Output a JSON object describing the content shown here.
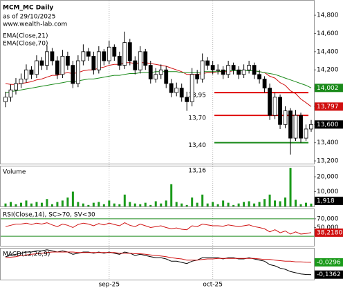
{
  "chart_data": [
    {
      "type": "candlestick",
      "title": "MCM_MC Daily",
      "subtitle": "as of 29/10/2025",
      "source": "www.wealth-lab.com",
      "categories": [
        null,
        null,
        null,
        null,
        null,
        null,
        null,
        null,
        null,
        null,
        null,
        null,
        null,
        null,
        null,
        null,
        null,
        null,
        null,
        null,
        "sep-25",
        null,
        null,
        null,
        null,
        null,
        null,
        null,
        null,
        null,
        null,
        null,
        null,
        null,
        null,
        null,
        null,
        null,
        null,
        null,
        "oct-25",
        null,
        null,
        null,
        null,
        null,
        null,
        null,
        null,
        null,
        null,
        null,
        null,
        null,
        null,
        null,
        null,
        null,
        null,
        null
      ],
      "open": [
        13850,
        13900,
        13980,
        14050,
        14100,
        14200,
        14150,
        14300,
        14250,
        14400,
        14300,
        14150,
        14350,
        14250,
        14050,
        14300,
        14400,
        14350,
        14200,
        14400,
        14300,
        14450,
        14350,
        14250,
        14500,
        14300,
        14200,
        14400,
        14250,
        14100,
        14150,
        14200,
        14050,
        13950,
        14000,
        13900,
        13850,
        14150,
        14100,
        14300,
        14250,
        14200,
        14200,
        14150,
        14250,
        14200,
        14150,
        14200,
        14250,
        14150,
        14100,
        14000,
        13700,
        13900,
        13600,
        13750,
        13450,
        13700,
        13450,
        13550
      ],
      "high": [
        13960,
        14040,
        14110,
        14160,
        14260,
        14240,
        14360,
        14340,
        14470,
        14440,
        14350,
        14420,
        14400,
        14300,
        14360,
        14480,
        14440,
        14400,
        14460,
        14430,
        14520,
        14480,
        14400,
        14620,
        14540,
        14350,
        14460,
        14430,
        14300,
        14220,
        14260,
        14240,
        14100,
        14060,
        14050,
        13960,
        14220,
        14200,
        14380,
        14340,
        14300,
        14260,
        14240,
        14300,
        14280,
        14240,
        14260,
        14300,
        14280,
        14200,
        14130,
        14050,
        13950,
        13930,
        13800,
        13780,
        13760,
        13730,
        13600,
        13650
      ],
      "low": [
        13790,
        13850,
        13930,
        14000,
        14060,
        14100,
        14110,
        14200,
        14200,
        14250,
        14100,
        14110,
        14200,
        14000,
        14010,
        14250,
        14300,
        14150,
        14160,
        14250,
        14260,
        14300,
        14200,
        14210,
        14250,
        14150,
        14160,
        14200,
        14050,
        14060,
        14100,
        14000,
        13900,
        13910,
        13850,
        13750,
        13800,
        14050,
        14060,
        14200,
        14150,
        14150,
        14100,
        14110,
        14150,
        14100,
        14110,
        14160,
        14100,
        14050,
        13950,
        13650,
        13660,
        13550,
        13560,
        13270,
        13420,
        13400,
        13420,
        13520
      ],
      "close": [
        13900,
        13980,
        14050,
        14100,
        14200,
        14150,
        14300,
        14250,
        14400,
        14300,
        14150,
        14350,
        14250,
        14050,
        14300,
        14400,
        14350,
        14200,
        14400,
        14300,
        14450,
        14350,
        14250,
        14500,
        14300,
        14200,
        14400,
        14250,
        14100,
        14150,
        14200,
        14050,
        13950,
        14000,
        13900,
        13850,
        14150,
        14100,
        14300,
        14250,
        14200,
        14200,
        14150,
        14250,
        14200,
        14150,
        14200,
        14250,
        14150,
        14100,
        14000,
        13700,
        13900,
        13600,
        13750,
        13450,
        13700,
        13450,
        13550,
        13600
      ],
      "close_label": "13,600",
      "ylim": [
        13170,
        14960
      ],
      "yticks": [
        {
          "value": 14800,
          "label": "14,800"
        },
        {
          "value": 14600,
          "label": "14,600"
        },
        {
          "value": 14400,
          "label": "14,400"
        },
        {
          "value": 14200,
          "label": "14,200"
        },
        {
          "value": 14000,
          "label": "14,000"
        },
        {
          "value": 13800,
          "label": "13,800"
        },
        {
          "value": 13600,
          "label": "13,600"
        },
        {
          "value": 13400,
          "label": "13,400"
        },
        {
          "value": 13200,
          "label": "13,200"
        }
      ],
      "series": [
        {
          "name": "EMA(Close,21)",
          "color": "#d01010",
          "value_label": "13,797",
          "values": [
            14050,
            14040,
            14040,
            14050,
            14060,
            14070,
            14090,
            14100,
            14120,
            14140,
            14140,
            14160,
            14170,
            14160,
            14170,
            14190,
            14200,
            14200,
            14220,
            14230,
            14250,
            14260,
            14260,
            14280,
            14280,
            14270,
            14280,
            14280,
            14270,
            14260,
            14250,
            14240,
            14220,
            14200,
            14180,
            14150,
            14150,
            14150,
            14160,
            14170,
            14170,
            14180,
            14180,
            14180,
            14190,
            14190,
            14190,
            14190,
            14190,
            14180,
            14170,
            14130,
            14110,
            14060,
            14030,
            13970,
            13940,
            13880,
            13840,
            13797
          ]
        },
        {
          "name": "EMA(Close,70)",
          "color": "#1a8a1a",
          "value_label": "14,002",
          "values": [
            13950,
            13960,
            13970,
            13980,
            13990,
            14000,
            14010,
            14020,
            14030,
            14040,
            14050,
            14060,
            14070,
            14070,
            14080,
            14090,
            14100,
            14100,
            14110,
            14120,
            14130,
            14140,
            14140,
            14150,
            14160,
            14160,
            14170,
            14170,
            14170,
            14180,
            14180,
            14180,
            14180,
            14180,
            14170,
            14170,
            14170,
            14170,
            14180,
            14180,
            14180,
            14180,
            14190,
            14190,
            14190,
            14190,
            14190,
            14190,
            14190,
            14180,
            14170,
            14160,
            14150,
            14130,
            14110,
            14090,
            14070,
            14050,
            14030,
            14002
          ]
        }
      ],
      "levels": [
        {
          "value": 13950,
          "label": "13,95",
          "color": "#e00000"
        },
        {
          "value": 13700,
          "label": "13,70",
          "color": "#e00000"
        },
        {
          "value": 13400,
          "label": "13,40",
          "color": "#1a8a1a"
        }
      ],
      "annotations": [
        "13,16"
      ],
      "grid": true
    },
    {
      "type": "bar",
      "title": "Volume",
      "color": "#1a9a1a",
      "values": [
        2000,
        3000,
        1500,
        2500,
        4000,
        2000,
        3000,
        2500,
        5000,
        1500,
        3000,
        4000,
        6000,
        10000,
        3000,
        2000,
        1000,
        2500,
        3000,
        1500,
        4000,
        2000,
        1500,
        8000,
        3000,
        2000,
        1500,
        2500,
        1000,
        3500,
        2000,
        4000,
        15000,
        3000,
        2000,
        1000,
        6000,
        2500,
        8000,
        2000,
        3000,
        1500,
        4000,
        2500,
        1000,
        2000,
        3000,
        3500,
        2000,
        3000,
        5000,
        8000,
        4000,
        3500,
        6000,
        26000,
        4500,
        1500,
        2500,
        1918
      ],
      "last_label": "1,918",
      "ylim": [
        0,
        27000
      ],
      "yticks": [
        {
          "value": 20000,
          "label": "20,000"
        },
        {
          "value": 10000,
          "label": "10,000"
        }
      ]
    },
    {
      "type": "line",
      "title": "RSI(Close,14), SC>70, SV<30",
      "color": "#d01010",
      "value_label": "38,2180",
      "values": [
        52,
        55,
        58,
        58,
        60,
        57,
        60,
        58,
        61,
        56,
        52,
        58,
        55,
        50,
        57,
        60,
        58,
        54,
        59,
        56,
        60,
        57,
        54,
        61,
        55,
        52,
        58,
        54,
        50,
        52,
        54,
        50,
        47,
        49,
        46,
        45,
        54,
        52,
        58,
        56,
        54,
        54,
        53,
        56,
        54,
        52,
        54,
        56,
        52,
        50,
        47,
        40,
        45,
        38,
        42,
        35,
        40,
        35,
        36,
        38.218
      ],
      "ylim": [
        8,
        92
      ],
      "yticks": [
        {
          "value": 70,
          "label": "70,000"
        },
        {
          "value": 50,
          "label": "50,000"
        }
      ],
      "levels": [
        70,
        30
      ],
      "level_color": "#1a8a1a"
    },
    {
      "type": "line",
      "title": "MACD(12,26,9)",
      "ylim": [
        -0.18,
        0.09
      ],
      "series": [
        {
          "color": "#000000",
          "value_label": "-0,1362",
          "values": [
            0.02,
            0.03,
            0.04,
            0.05,
            0.06,
            0.06,
            0.07,
            0.07,
            0.08,
            0.07,
            0.06,
            0.07,
            0.06,
            0.04,
            0.05,
            0.06,
            0.06,
            0.05,
            0.06,
            0.05,
            0.06,
            0.05,
            0.04,
            0.06,
            0.05,
            0.03,
            0.04,
            0.03,
            0.02,
            0.01,
            0.01,
            0,
            -0.02,
            -0.02,
            -0.03,
            -0.04,
            -0.02,
            -0.01,
            0.01,
            0.01,
            0.01,
            0.01,
            0,
            0.01,
            0.01,
            0,
            0,
            0.01,
            0,
            -0.01,
            -0.02,
            -0.05,
            -0.06,
            -0.08,
            -0.09,
            -0.11,
            -0.12,
            -0.13,
            -0.135,
            -0.1362
          ]
        },
        {
          "color": "#d01010",
          "label_color": "#1a9a1a",
          "value_label": "-0,0296",
          "values": [
            0.01,
            0.015,
            0.02,
            0.03,
            0.035,
            0.04,
            0.045,
            0.05,
            0.055,
            0.06,
            0.06,
            0.06,
            0.06,
            0.06,
            0.055,
            0.055,
            0.055,
            0.055,
            0.055,
            0.055,
            0.055,
            0.055,
            0.05,
            0.05,
            0.05,
            0.045,
            0.045,
            0.04,
            0.035,
            0.03,
            0.025,
            0.02,
            0.01,
            0.005,
            0,
            -0.01,
            -0.01,
            -0.01,
            -0.005,
            0,
            0,
            0.005,
            0.005,
            0.005,
            0.005,
            0.005,
            0.005,
            0.005,
            0.005,
            0,
            -0.005,
            -0.005,
            -0.01,
            -0.015,
            -0.02,
            -0.02,
            -0.025,
            -0.025,
            -0.028,
            -0.0296
          ]
        }
      ]
    }
  ]
}
